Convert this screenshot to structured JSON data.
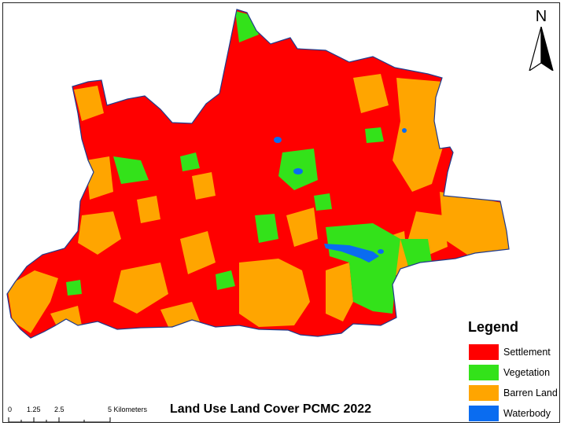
{
  "title": "Land Use Land Cover PCMC 2022",
  "north_arrow": {
    "label": "N",
    "icon": "north-arrow-icon"
  },
  "legend": {
    "title": "Legend",
    "items": [
      {
        "label": "Settlement",
        "color": "#ff0000"
      },
      {
        "label": "Vegetation",
        "color": "#33e21a"
      },
      {
        "label": "Barren Land",
        "color": "#ffa500"
      },
      {
        "label": "Waterbody",
        "color": "#0a6cf0"
      }
    ]
  },
  "scale_bar": {
    "ticks": [
      "0",
      "1.25",
      "2.5",
      "5 Kilometers"
    ]
  },
  "colors": {
    "settlement": "#ff0000",
    "vegetation": "#33e21a",
    "barren": "#ffa500",
    "water": "#0a6cf0",
    "outline": "#1f3a8c"
  }
}
